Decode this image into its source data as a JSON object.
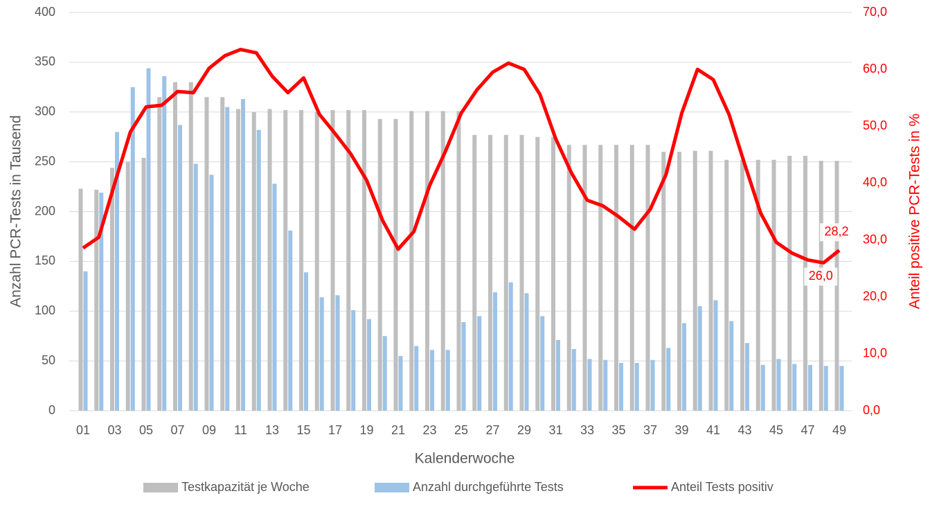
{
  "chart_data": {
    "type": "bar-line",
    "xlabel": "Kalenderwoche",
    "ylabel": "Anzahl PCR-Tests in Tausend",
    "y2label": "Anteil positive PCR-Tests in %",
    "categories": [
      "01",
      null,
      "03",
      null,
      "05",
      null,
      "07",
      null,
      "09",
      null,
      "11",
      null,
      "13",
      null,
      "15",
      null,
      "17",
      null,
      "19",
      null,
      "21",
      null,
      "23",
      null,
      "25",
      null,
      "27",
      null,
      "29",
      null,
      "31",
      null,
      "33",
      null,
      "35",
      null,
      "37",
      null,
      "39",
      null,
      "41",
      null,
      "43",
      null,
      "45",
      null,
      "47",
      null,
      "49"
    ],
    "ylim": [
      0,
      400
    ],
    "yticks": [
      0,
      50,
      100,
      150,
      200,
      250,
      300,
      350,
      400
    ],
    "y2lim": [
      0,
      70
    ],
    "y2ticks": [
      {
        "value": 0,
        "label": "0,0"
      },
      {
        "value": 10,
        "label": "10,0"
      },
      {
        "value": 20,
        "label": "20,0"
      },
      {
        "value": 30,
        "label": "30,0"
      },
      {
        "value": 40,
        "label": "40,0"
      },
      {
        "value": 50,
        "label": "50,0"
      },
      {
        "value": 60,
        "label": "60,0"
      },
      {
        "value": 70,
        "label": "70,0"
      }
    ],
    "grid": true,
    "legend": "bottom",
    "series": [
      {
        "name": "Testkapazität je Woche",
        "kind": "bar",
        "color": "#bfbfbf",
        "values": [
          223,
          222,
          244,
          250,
          254,
          315,
          330,
          330,
          315,
          315,
          303,
          300,
          303,
          302,
          302,
          300,
          302,
          302,
          302,
          293,
          293,
          301,
          301,
          301,
          301,
          277,
          277,
          277,
          277,
          275,
          275,
          267,
          267,
          267,
          267,
          267,
          267,
          260,
          260,
          261,
          261,
          252,
          252,
          252,
          252,
          256,
          256,
          251,
          251
        ]
      },
      {
        "name": "Anzahl durchgeführte Tests",
        "kind": "bar",
        "color": "#9dc3e6",
        "values": [
          140,
          219,
          280,
          325,
          344,
          336,
          287,
          248,
          237,
          305,
          313,
          282,
          228,
          181,
          139,
          114,
          116,
          101,
          92,
          75,
          55,
          65,
          61,
          61,
          89,
          95,
          119,
          129,
          118,
          95,
          71,
          62,
          52,
          51,
          48,
          48,
          51,
          63,
          88,
          105,
          111,
          90,
          68,
          46,
          52,
          47,
          46,
          45,
          45
        ]
      },
      {
        "name": "Anteil Tests positiv",
        "kind": "line",
        "axis": "y2",
        "color": "#ff0000",
        "values": [
          28.6,
          30.5,
          39.9,
          49.0,
          53.4,
          53.7,
          56.1,
          55.9,
          60.2,
          62.4,
          63.5,
          62.9,
          58.8,
          55.9,
          58.5,
          52.1,
          48.7,
          45.1,
          40.5,
          33.5,
          28.4,
          31.5,
          39.6,
          45.6,
          52.3,
          56.4,
          59.5,
          61.1,
          60.0,
          55.6,
          47.8,
          41.8,
          37.0,
          36.0,
          34.1,
          31.9,
          35.4,
          41.5,
          52.3,
          60.0,
          58.2,
          52.1,
          43.3,
          34.8,
          29.6,
          27.7,
          26.5,
          26.0,
          28.2
        ],
        "value_labels": [
          null,
          null,
          null,
          null,
          null,
          null,
          null,
          null,
          null,
          null,
          null,
          null,
          null,
          null,
          null,
          null,
          null,
          null,
          null,
          null,
          null,
          null,
          null,
          null,
          null,
          null,
          null,
          null,
          null,
          null,
          null,
          null,
          null,
          null,
          null,
          null,
          null,
          null,
          null,
          null,
          null,
          null,
          null,
          null,
          null,
          null,
          null,
          "26,0",
          "28,2"
        ]
      }
    ]
  }
}
